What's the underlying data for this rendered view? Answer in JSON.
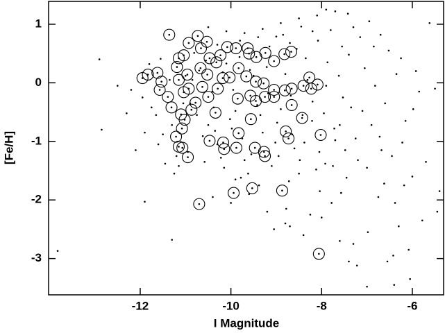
{
  "chart_data": {
    "type": "scatter",
    "x_label": "I Magnitude",
    "y_label": "[Fe/H]",
    "xlim": [
      -14.02,
      -5.31
    ],
    "ylim": [
      -3.62,
      1.39
    ],
    "xticks": [
      -12,
      -10,
      -8,
      -6
    ],
    "yticks": [
      -3,
      -2,
      -1,
      0,
      1
    ],
    "grid": false,
    "series": [
      {
        "marker": "dot",
        "color": "#000000",
        "x": [
          -10.9,
          -10.7,
          -10.5,
          -10.3,
          -10.1,
          -9.9,
          -9.7,
          -9.5,
          -9.3,
          -9.1,
          -10.85,
          -10.62,
          -10.41,
          -10.22,
          -10.02,
          -9.81,
          -9.62,
          -9.42,
          -9.21,
          -9.02,
          -10.95,
          -10.75,
          -10.55,
          -10.35,
          -10.15,
          -9.95,
          -9.75,
          -9.55,
          -9.35,
          -9.15,
          -10.81,
          -10.58,
          -10.38,
          -10.18,
          -9.98,
          -9.78,
          -9.58,
          -9.38,
          -9.18,
          -8.98,
          -8.95,
          -8.8,
          -8.65,
          -8.5,
          -8.35,
          -8.2,
          -8.05,
          -7.9,
          -7.75,
          -7.6,
          -8.9,
          -8.72,
          -8.55,
          -8.38,
          -8.21,
          -8.04,
          -7.87,
          -7.7,
          -7.53,
          -7.45,
          -8.85,
          -8.68,
          -8.48,
          -8.31,
          -8.12,
          -7.95,
          -7.78,
          -7.62,
          -7.48,
          -7.35,
          -8.78,
          -8.6,
          -8.42,
          -8.25,
          -8.08,
          -7.92,
          -7.72,
          -7.57,
          -7.4,
          -7.25,
          -7.2,
          -7.05,
          -6.9,
          -6.75,
          -6.6,
          -6.45,
          -6.3,
          -6.15,
          -6.0,
          -5.85,
          -7.15,
          -6.98,
          -6.82,
          -6.68,
          -6.52,
          -6.38,
          -6.22,
          -6.08,
          -5.92,
          -5.7,
          -7.3,
          -7.1,
          -6.95,
          -6.72,
          -6.55,
          -6.35,
          -6.18,
          -5.98,
          -5.78,
          -5.5,
          -7.42,
          -7.22,
          -7.0,
          -6.85,
          -6.62,
          -6.42,
          -6.25,
          -6.05,
          -5.62,
          -5.4,
          -11.95,
          -11.8,
          -11.65,
          -11.5,
          -11.35,
          -11.2,
          -11.05,
          -11.9,
          -11.6,
          -11.3,
          -12.2,
          -12.5,
          -12.1,
          -11.75,
          -11.45,
          -11.15,
          -11.0,
          -12.3,
          -11.55,
          -11.25,
          -10.5,
          -10.1,
          -9.7,
          -9.3,
          -8.9,
          -8.5,
          -8.1,
          -7.7,
          -7.3,
          -7.9,
          -9.8,
          -9.4,
          -8.7,
          -8.2,
          -7.55,
          -10.3,
          -9.0,
          -8.45,
          -7.8,
          -6.7,
          -10.4,
          -10.0,
          -9.6,
          -9.2,
          -8.8,
          -8.4,
          -8.0,
          -7.6,
          -9.9,
          -9.05,
          -13.82,
          -12.9,
          -12.85,
          -11.9,
          -11.3,
          -8.7,
          -7.4,
          -6.4,
          -5.45,
          -7.0
        ],
        "y": [
          -0.35,
          0.21,
          -0.72,
          -1.05,
          0.33,
          -0.48,
          -1.32,
          0.12,
          -0.85,
          -1.42,
          0.05,
          -0.91,
          -0.15,
          -1.28,
          -0.62,
          0.44,
          -1.55,
          -0.38,
          0.27,
          -1.02,
          -1.18,
          -0.55,
          0.38,
          -0.82,
          -1.45,
          -0.12,
          -0.95,
          -1.22,
          -0.55,
          0.62,
          0.51,
          -1.35,
          -0.42,
          0.18,
          -0.78,
          -1.62,
          0.22,
          -1.75,
          -0.18,
          -0.68,
          -1.25,
          0.15,
          -0.88,
          -1.55,
          0.42,
          -0.32,
          -1.18,
          -0.05,
          -1.42,
          -0.72,
          -0.45,
          -1.68,
          0.58,
          -1.02,
          -0.65,
          -1.85,
          0.35,
          -0.98,
          -0.25,
          -1.62,
          0.82,
          -0.22,
          -1.32,
          0.05,
          -1.48,
          -0.52,
          -2.05,
          0.12,
          -1.15,
          -0.42,
          -2.15,
          -1.12,
          -0.55,
          -2.25,
          0.72,
          -1.38,
          -0.78,
          -1.88,
          0.48,
          -0.95,
          -1.32,
          0.25,
          -0.72,
          -1.95,
          -0.35,
          -1.25,
          -2.45,
          -0.65,
          -1.6,
          -0.15,
          0.78,
          -2.55,
          -0.05,
          -1.15,
          0.55,
          -2.05,
          -1.02,
          -2.85,
          0.2,
          -1.35,
          -2.75,
          -0.48,
          1.05,
          -0.92,
          -3.05,
          0.15,
          -1.75,
          -0.45,
          -2.35,
          -0.1,
          1.18,
          -3.12,
          -1.45,
          0.62,
          -1.72,
          -2.95,
          0.42,
          -3.35,
          1.02,
          -1.85,
          -0.25,
          0.32,
          -0.55,
          -0.88,
          0.05,
          -1.25,
          -0.35,
          -0.85,
          -1.05,
          -0.72,
          -0.12,
          -0.05,
          -1.15,
          -0.42,
          -1.38,
          -1.42,
          0.12,
          -0.52,
          0.41,
          -1.55,
          0.95,
          0.88,
          0.85,
          0.92,
          1.02,
          1.1,
          1.15,
          1.22,
          0.95,
          1.25,
          0.72,
          0.78,
          0.68,
          0.88,
          0.62,
          0.65,
          0.79,
          0.96,
          0.9,
          0.82,
          -1.95,
          -2.05,
          -1.9,
          -2.2,
          -2.4,
          -2.6,
          -2.3,
          -2.7,
          -1.65,
          -2.5,
          -2.87,
          0.4,
          -0.8,
          -2.03,
          -2.68,
          -2.45,
          -3.05,
          -3.45,
          -2.2,
          -3.48
        ]
      },
      {
        "marker": "circle",
        "color": "#000000",
        "x": [
          -11.36,
          -10.73,
          -10.53,
          -10.93,
          -11.04,
          -10.66,
          -10.47,
          -11.19,
          -11.15,
          -11.95,
          -11.83,
          -11.62,
          -11.53,
          -11.15,
          -10.96,
          -10.67,
          -10.52,
          -10.32,
          -10.23,
          -10.08,
          -9.89,
          -9.63,
          -9.6,
          -9.44,
          -9.24,
          -9.05,
          -8.82,
          -8.67,
          -11.57,
          -11.39,
          -11.31,
          -11.04,
          -10.93,
          -10.63,
          -10.78,
          -10.5,
          -10.29,
          -10.18,
          -10.03,
          -9.83,
          -9.66,
          -9.45,
          -9.28,
          -9.25,
          -9.05,
          -8.81,
          -8.66,
          -8.4,
          -8.27,
          -8.09,
          -11.1,
          -11.02,
          -11.08,
          -11.21,
          -10.87,
          -10.34,
          -9.85,
          -9.57,
          -9.45,
          -9.05,
          -8.66,
          -8.43,
          -8.23,
          -9.56,
          -9.83,
          -10.47,
          -10.17,
          -10.15,
          -11.07,
          -11.15,
          -10.95,
          -9.88,
          -9.47,
          -9.27,
          -9.25,
          -8.79,
          -8.73,
          -8.02,
          -9.94,
          -9.53,
          -8.87,
          -10.7,
          -8.06
        ],
        "y": [
          0.82,
          0.8,
          0.7,
          0.68,
          0.47,
          0.59,
          0.42,
          0.27,
          0.42,
          0.08,
          0.14,
          0.17,
          0.02,
          0.05,
          0.14,
          0.25,
          0.14,
          0.35,
          0.47,
          0.61,
          0.59,
          0.59,
          0.5,
          0.44,
          0.51,
          0.37,
          0.49,
          0.53,
          -0.12,
          -0.24,
          -0.42,
          -0.16,
          -0.1,
          -0.07,
          -0.34,
          -0.24,
          -0.1,
          0.08,
          0.09,
          0.25,
          0.11,
          0.02,
          -0.01,
          -0.24,
          -0.12,
          -0.13,
          -0.1,
          -0.05,
          0.09,
          -0.03,
          -0.54,
          -0.63,
          -0.78,
          -0.92,
          -0.46,
          -0.51,
          -0.27,
          -0.22,
          -0.31,
          -0.24,
          -0.38,
          -0.6,
          -0.1,
          -0.62,
          -0.86,
          -0.99,
          -1.02,
          -1.13,
          -1.11,
          -1.09,
          -1.27,
          -1.11,
          -1.11,
          -1.18,
          -1.25,
          -0.83,
          -0.95,
          -0.89,
          -1.88,
          -1.8,
          -1.84,
          -2.07,
          -2.92
        ]
      }
    ]
  }
}
